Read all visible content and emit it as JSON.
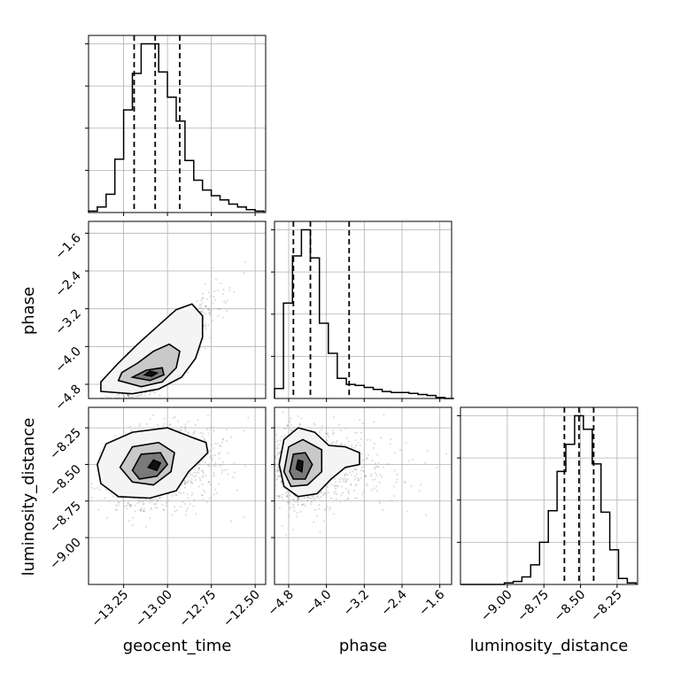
{
  "chart_data": {
    "type": "corner",
    "parameters": [
      "geocent_time",
      "phase",
      "luminosity_distance"
    ],
    "axis_labels": [
      "geocent_time",
      "phase",
      "luminosity_distance"
    ],
    "ranges": {
      "geocent_time": [
        -13.45,
        -12.44
      ],
      "phase": [
        -5.1,
        -1.35
      ],
      "luminosity_distance": [
        -9.32,
        -8.11
      ]
    },
    "ticks": {
      "geocent_time": [
        -13.25,
        -13.0,
        -12.75,
        -12.5
      ],
      "phase": [
        -4.8,
        -4.0,
        -3.2,
        -2.4,
        -1.6
      ],
      "luminosity_distance": [
        -9.0,
        -8.75,
        -8.5,
        -8.25
      ]
    },
    "tick_labels": {
      "geocent_time": [
        "−13.25",
        "−13.00",
        "−12.75",
        "−12.50"
      ],
      "phase": [
        "−4.8",
        "−4.0",
        "−3.2",
        "−2.4",
        "−1.6"
      ],
      "luminosity_distance": [
        "−9.00",
        "−8.75",
        "−8.50",
        "−8.25"
      ]
    },
    "histograms": {
      "geocent_time": {
        "bin_edges": [
          -13.45,
          -13.4,
          -13.35,
          -13.3,
          -13.25,
          -13.2,
          -13.15,
          -13.1,
          -13.05,
          -13.0,
          -12.95,
          -12.9,
          -12.85,
          -12.8,
          -12.75,
          -12.7,
          -12.65,
          -12.6,
          -12.55,
          -12.5,
          -12.45
        ],
        "counts": [
          1,
          4,
          13,
          38,
          73,
          99,
          120,
          120,
          100,
          82,
          65,
          37,
          23,
          16,
          12,
          9,
          6,
          4,
          2,
          1
        ],
        "quantiles": [
          -13.19,
          -13.07,
          -12.93
        ]
      },
      "phase": {
        "bin_edges": [
          -5.1,
          -4.91,
          -4.72,
          -4.53,
          -4.34,
          -4.15,
          -3.96,
          -3.77,
          -3.58,
          -3.39,
          -3.2,
          -3.01,
          -2.82,
          -2.63,
          -2.44,
          -2.25,
          -2.06,
          -1.87,
          -1.68,
          -1.49,
          -1.3
        ],
        "counts": [
          10,
          95,
          142,
          168,
          140,
          75,
          45,
          20,
          14,
          13,
          11,
          9,
          7,
          6,
          6,
          5,
          4,
          3,
          1,
          0
        ],
        "quantiles": [
          -4.7,
          -4.34,
          -3.52
        ]
      },
      "luminosity_distance": {
        "bin_edges": [
          -9.32,
          -9.26,
          -9.2,
          -9.14,
          -9.08,
          -9.02,
          -8.96,
          -8.9,
          -8.84,
          -8.78,
          -8.72,
          -8.66,
          -8.6,
          -8.54,
          -8.48,
          -8.42,
          -8.36,
          -8.3,
          -8.24,
          -8.18,
          -8.12
        ],
        "counts": [
          0,
          0,
          0,
          0,
          0,
          1,
          2,
          5,
          13,
          28,
          49,
          75,
          93,
          112,
          103,
          80,
          48,
          23,
          4,
          1
        ],
        "quantiles": [
          -8.61,
          -8.51,
          -8.41
        ]
      }
    },
    "pairs": [
      {
        "x": "geocent_time",
        "y": "phase",
        "peak": [
          -13.1,
          -4.55
        ],
        "spread": [
          0.11,
          0.38
        ],
        "correlation": 0.82,
        "contours": [
          [
            [
              -13.38,
              -4.95
            ],
            [
              -13.2,
              -5.0
            ],
            [
              -13.05,
              -4.9
            ],
            [
              -12.92,
              -4.65
            ],
            [
              -12.84,
              -4.25
            ],
            [
              -12.8,
              -3.8
            ],
            [
              -12.8,
              -3.35
            ],
            [
              -12.86,
              -3.1
            ],
            [
              -12.95,
              -3.22
            ],
            [
              -13.05,
              -3.55
            ],
            [
              -13.17,
              -3.95
            ],
            [
              -13.28,
              -4.35
            ],
            [
              -13.38,
              -4.75
            ],
            [
              -13.38,
              -4.95
            ]
          ],
          [
            [
              -13.28,
              -4.72
            ],
            [
              -13.15,
              -4.85
            ],
            [
              -13.03,
              -4.75
            ],
            [
              -12.95,
              -4.45
            ],
            [
              -12.93,
              -4.1
            ],
            [
              -12.99,
              -3.95
            ],
            [
              -13.08,
              -4.1
            ],
            [
              -13.17,
              -4.35
            ],
            [
              -13.26,
              -4.55
            ],
            [
              -13.28,
              -4.72
            ]
          ],
          [
            [
              -13.2,
              -4.65
            ],
            [
              -13.1,
              -4.72
            ],
            [
              -13.02,
              -4.6
            ],
            [
              -13.03,
              -4.45
            ],
            [
              -13.12,
              -4.5
            ],
            [
              -13.2,
              -4.65
            ]
          ],
          [
            [
              -13.13,
              -4.6
            ],
            [
              -13.09,
              -4.63
            ],
            [
              -13.06,
              -4.56
            ],
            [
              -13.1,
              -4.52
            ],
            [
              -13.13,
              -4.6
            ]
          ]
        ]
      },
      {
        "x": "geocent_time",
        "y": "luminosity_distance",
        "peak": [
          -13.08,
          -8.52
        ],
        "spread": [
          0.12,
          0.13
        ],
        "correlation": 0.3,
        "contours": [
          [
            [
              -13.4,
              -8.5
            ],
            [
              -13.35,
              -8.36
            ],
            [
              -13.2,
              -8.28
            ],
            [
              -13.0,
              -8.25
            ],
            [
              -12.85,
              -8.32
            ],
            [
              -12.78,
              -8.35
            ],
            [
              -12.77,
              -8.42
            ],
            [
              -12.82,
              -8.48
            ],
            [
              -12.88,
              -8.55
            ],
            [
              -12.95,
              -8.68
            ],
            [
              -13.1,
              -8.73
            ],
            [
              -13.28,
              -8.72
            ],
            [
              -13.38,
              -8.63
            ],
            [
              -13.4,
              -8.5
            ]
          ],
          [
            [
              -13.27,
              -8.52
            ],
            [
              -13.2,
              -8.38
            ],
            [
              -13.05,
              -8.35
            ],
            [
              -12.96,
              -8.42
            ],
            [
              -12.98,
              -8.55
            ],
            [
              -13.08,
              -8.64
            ],
            [
              -13.2,
              -8.62
            ],
            [
              -13.27,
              -8.52
            ]
          ],
          [
            [
              -13.2,
              -8.54
            ],
            [
              -13.15,
              -8.43
            ],
            [
              -13.04,
              -8.42
            ],
            [
              -13.0,
              -8.5
            ],
            [
              -13.06,
              -8.58
            ],
            [
              -13.16,
              -8.6
            ],
            [
              -13.2,
              -8.54
            ]
          ],
          [
            [
              -13.11,
              -8.52
            ],
            [
              -13.08,
              -8.47
            ],
            [
              -13.04,
              -8.49
            ],
            [
              -13.06,
              -8.54
            ],
            [
              -13.11,
              -8.52
            ]
          ]
        ]
      },
      {
        "x": "phase",
        "y": "luminosity_distance",
        "peak": [
          -4.55,
          -8.52
        ],
        "spread": [
          0.42,
          0.13
        ],
        "correlation": 0.0,
        "contours": [
          [
            [
              -5.0,
              -8.5
            ],
            [
              -4.9,
              -8.33
            ],
            [
              -4.6,
              -8.25
            ],
            [
              -4.25,
              -8.28
            ],
            [
              -3.95,
              -8.37
            ],
            [
              -3.6,
              -8.38
            ],
            [
              -3.3,
              -8.42
            ],
            [
              -3.3,
              -8.5
            ],
            [
              -3.6,
              -8.52
            ],
            [
              -3.9,
              -8.6
            ],
            [
              -4.2,
              -8.7
            ],
            [
              -4.6,
              -8.72
            ],
            [
              -4.9,
              -8.65
            ],
            [
              -5.0,
              -8.5
            ]
          ],
          [
            [
              -4.9,
              -8.55
            ],
            [
              -4.8,
              -8.38
            ],
            [
              -4.5,
              -8.33
            ],
            [
              -4.1,
              -8.4
            ],
            [
              -4.1,
              -8.55
            ],
            [
              -4.4,
              -8.64
            ],
            [
              -4.75,
              -8.65
            ],
            [
              -4.9,
              -8.55
            ]
          ],
          [
            [
              -4.78,
              -8.55
            ],
            [
              -4.7,
              -8.43
            ],
            [
              -4.45,
              -8.42
            ],
            [
              -4.3,
              -8.5
            ],
            [
              -4.45,
              -8.6
            ],
            [
              -4.7,
              -8.6
            ],
            [
              -4.78,
              -8.55
            ]
          ],
          [
            [
              -4.64,
              -8.53
            ],
            [
              -4.6,
              -8.47
            ],
            [
              -4.5,
              -8.48
            ],
            [
              -4.52,
              -8.55
            ],
            [
              -4.64,
              -8.53
            ]
          ]
        ]
      }
    ],
    "grid": true
  }
}
